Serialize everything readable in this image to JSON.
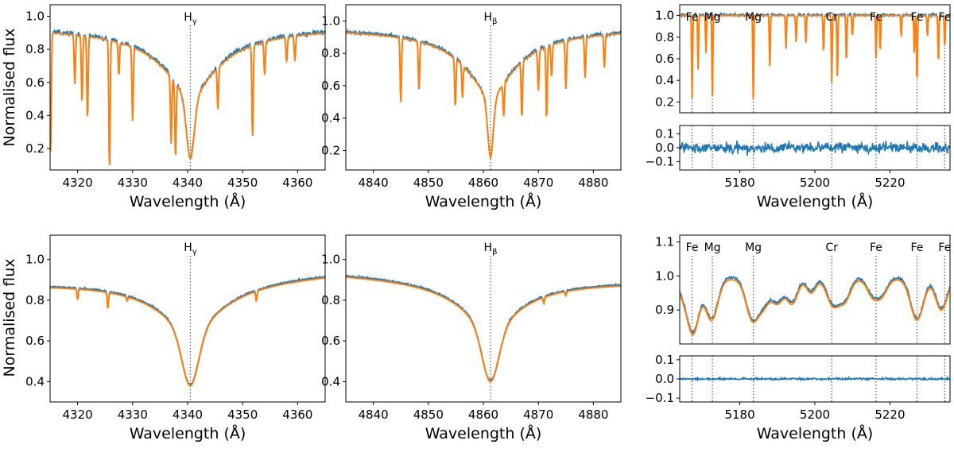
{
  "figure": {
    "ylabel": "Normalised flux",
    "xlabel": "Wavelength (Å)",
    "colors": {
      "observed": "#1f77b4",
      "model": "#ff7f0e",
      "marker": "#555555"
    }
  },
  "chart_data": [
    {
      "id": "top-hgamma",
      "type": "line",
      "title": "",
      "xlabel": "Wavelength (Å)",
      "ylabel": "Normalised flux",
      "xlim": [
        4315,
        4365
      ],
      "ylim": [
        0.07,
        1.07
      ],
      "xticks": [
        4320,
        4330,
        4340,
        4350,
        4360
      ],
      "yticks": [
        0.2,
        0.4,
        0.6,
        0.8,
        1.0
      ],
      "ytick_labels": [
        "0.2",
        "0.4",
        "0.6",
        "0.8",
        "1.0"
      ],
      "line_markers": [
        {
          "x": 4340.5,
          "label": "H",
          "sub": "γ"
        }
      ],
      "profile": {
        "kind": "balmer",
        "center": 4340.5,
        "continuum": 0.94,
        "cont_slope": 0.0,
        "depth": 0.8,
        "core_width": 0.7,
        "wing_width": 6.0,
        "noise": 0.015
      },
      "absorption_lines": [
        {
          "x": 4315.1,
          "depth": 0.72
        },
        {
          "x": 4319.5,
          "depth": 0.3
        },
        {
          "x": 4320.8,
          "depth": 0.4
        },
        {
          "x": 4321.8,
          "depth": 0.5
        },
        {
          "x": 4325.8,
          "depth": 0.78
        },
        {
          "x": 4327.5,
          "depth": 0.2
        },
        {
          "x": 4330.0,
          "depth": 0.45
        },
        {
          "x": 4337.0,
          "depth": 0.4
        },
        {
          "x": 4337.8,
          "depth": 0.45
        },
        {
          "x": 4345.5,
          "depth": 0.25
        },
        {
          "x": 4351.8,
          "depth": 0.55
        },
        {
          "x": 4354.0,
          "depth": 0.2
        },
        {
          "x": 4358.0,
          "depth": 0.15
        },
        {
          "x": 4359.5,
          "depth": 0.15
        }
      ]
    },
    {
      "id": "top-hbeta",
      "type": "line",
      "title": "",
      "xlabel": "Wavelength (Å)",
      "xlim": [
        4835,
        4885
      ],
      "ylim": [
        0.08,
        1.1
      ],
      "xticks": [
        4840,
        4850,
        4860,
        4870,
        4880
      ],
      "yticks": [
        0.2,
        0.4,
        0.6,
        0.8,
        1.0
      ],
      "ytick_labels": [
        "0.2",
        "0.4",
        "0.6",
        "0.8",
        "1.0"
      ],
      "line_markers": [
        {
          "x": 4861.3,
          "label": "H",
          "sub": "β"
        }
      ],
      "profile": {
        "kind": "balmer",
        "center": 4861.3,
        "continuum": 0.96,
        "cont_slope": 0.0,
        "depth": 0.8,
        "core_width": 0.5,
        "wing_width": 5.5,
        "noise": 0.012
      },
      "absorption_lines": [
        {
          "x": 4845.0,
          "depth": 0.4
        },
        {
          "x": 4848.3,
          "depth": 0.3
        },
        {
          "x": 4854.9,
          "depth": 0.3
        },
        {
          "x": 4856.2,
          "depth": 0.2
        },
        {
          "x": 4863.7,
          "depth": 0.2
        },
        {
          "x": 4867.0,
          "depth": 0.35
        },
        {
          "x": 4870.0,
          "depth": 0.25
        },
        {
          "x": 4871.5,
          "depth": 0.45
        },
        {
          "x": 4872.4,
          "depth": 0.2
        },
        {
          "x": 4875.0,
          "depth": 0.3
        },
        {
          "x": 4878.5,
          "depth": 0.25
        },
        {
          "x": 4882.0,
          "depth": 0.2
        }
      ]
    },
    {
      "id": "top-mgb",
      "type": "line",
      "title": "",
      "xlim": [
        5164,
        5236
      ],
      "ylim": [
        0.1,
        1.1
      ],
      "xticks": [],
      "yticks": [
        0.2,
        0.4,
        0.6,
        0.8,
        1.0
      ],
      "ytick_labels": [
        "0.2",
        "0.4",
        "0.6",
        "0.8",
        "1.0"
      ],
      "line_markers": [
        {
          "x": 5167.3,
          "label": "Fe"
        },
        {
          "x": 5172.7,
          "label": "Mg"
        },
        {
          "x": 5183.6,
          "label": "Mg"
        },
        {
          "x": 5204.5,
          "label": "Cr"
        },
        {
          "x": 5216.3,
          "label": "Fe"
        },
        {
          "x": 5227.2,
          "label": "Fe"
        },
        {
          "x": 5234.6,
          "label": "Fe"
        }
      ],
      "profile": {
        "kind": "flat",
        "continuum": 1.0,
        "noise": 0.012
      },
      "absorption_lines": [
        {
          "x": 5167.3,
          "depth": 0.77
        },
        {
          "x": 5168.9,
          "depth": 0.5
        },
        {
          "x": 5171.0,
          "depth": 0.35
        },
        {
          "x": 5172.7,
          "depth": 0.78
        },
        {
          "x": 5183.6,
          "depth": 0.78
        },
        {
          "x": 5188.0,
          "depth": 0.5
        },
        {
          "x": 5192.3,
          "depth": 0.3
        },
        {
          "x": 5195.0,
          "depth": 0.25
        },
        {
          "x": 5197.6,
          "depth": 0.25
        },
        {
          "x": 5202.3,
          "depth": 0.35
        },
        {
          "x": 5204.5,
          "depth": 0.62
        },
        {
          "x": 5206.0,
          "depth": 0.6
        },
        {
          "x": 5208.4,
          "depth": 0.45
        },
        {
          "x": 5210.0,
          "depth": 0.2
        },
        {
          "x": 5216.3,
          "depth": 0.4
        },
        {
          "x": 5217.4,
          "depth": 0.35
        },
        {
          "x": 5223.0,
          "depth": 0.2
        },
        {
          "x": 5226.5,
          "depth": 0.35
        },
        {
          "x": 5227.2,
          "depth": 0.65
        },
        {
          "x": 5230.0,
          "depth": 0.2
        },
        {
          "x": 5232.9,
          "depth": 0.45
        },
        {
          "x": 5234.6,
          "depth": 0.3
        }
      ]
    },
    {
      "id": "top-mgb-residual",
      "type": "line",
      "title": "",
      "xlabel": "Wavelength (Å)",
      "xlim": [
        5164,
        5236
      ],
      "ylim": [
        -0.16,
        0.16
      ],
      "xticks": [
        5180,
        5200,
        5220
      ],
      "yticks": [
        -0.1,
        0.0,
        0.1
      ],
      "ytick_labels": [
        "−0.1",
        "0.0",
        "0.1"
      ],
      "marker_x": [
        5167.3,
        5172.7,
        5183.6,
        5204.5,
        5216.3,
        5227.2,
        5234.6
      ],
      "profile": {
        "kind": "residual",
        "noise": 0.035
      }
    },
    {
      "id": "bottom-hgamma",
      "type": "line",
      "title": "",
      "xlabel": "Wavelength (Å)",
      "ylabel": "Normalised flux",
      "xlim": [
        4315,
        4365
      ],
      "ylim": [
        0.3,
        1.12
      ],
      "xticks": [
        4320,
        4330,
        4340,
        4350,
        4360
      ],
      "yticks": [
        0.4,
        0.6,
        0.8,
        1.0
      ],
      "ytick_labels": [
        "0.4",
        "0.6",
        "0.8",
        "1.0"
      ],
      "line_markers": [
        {
          "x": 4340.5,
          "label": "H",
          "sub": "γ"
        }
      ],
      "profile": {
        "kind": "balmer",
        "center": 4340.5,
        "continuum": 0.92,
        "cont_slope": 0.001,
        "depth": 0.54,
        "core_width": 1.5,
        "wing_width": 7.0,
        "noise": 0.004
      },
      "absorption_lines": [
        {
          "x": 4320.0,
          "depth": 0.05
        },
        {
          "x": 4325.5,
          "depth": 0.08
        },
        {
          "x": 4329.0,
          "depth": 0.02
        },
        {
          "x": 4352.5,
          "depth": 0.05
        }
      ]
    },
    {
      "id": "bottom-hbeta",
      "type": "line",
      "title": "",
      "xlabel": "Wavelength (Å)",
      "xlim": [
        4835,
        4885
      ],
      "ylim": [
        0.3,
        1.12
      ],
      "xticks": [
        4840,
        4850,
        4860,
        4870,
        4880
      ],
      "yticks": [
        0.4,
        0.6,
        0.8,
        1.0
      ],
      "ytick_labels": [
        "0.4",
        "0.6",
        "0.8",
        "1.0"
      ],
      "line_markers": [
        {
          "x": 4861.3,
          "label": "H",
          "sub": "β"
        }
      ],
      "profile": {
        "kind": "balmer",
        "center": 4861.3,
        "continuum": 0.92,
        "cont_slope": -0.0008,
        "depth": 0.52,
        "core_width": 1.5,
        "wing_width": 6.5,
        "noise": 0.004
      },
      "absorption_lines": [
        {
          "x": 4871.0,
          "depth": 0.03
        },
        {
          "x": 4875.0,
          "depth": 0.02
        }
      ]
    },
    {
      "id": "bottom-mgb",
      "type": "line",
      "title": "",
      "xlim": [
        5164,
        5236
      ],
      "ylim": [
        0.8,
        1.12
      ],
      "xticks": [],
      "yticks": [
        0.9,
        1.0,
        1.1
      ],
      "ytick_labels": [
        "0.9",
        "1.0",
        "1.1"
      ],
      "line_markers": [
        {
          "x": 5167.3,
          "label": "Fe"
        },
        {
          "x": 5172.7,
          "label": "Mg"
        },
        {
          "x": 5183.6,
          "label": "Mg"
        },
        {
          "x": 5204.5,
          "label": "Cr"
        },
        {
          "x": 5216.3,
          "label": "Fe"
        },
        {
          "x": 5227.2,
          "label": "Fe"
        },
        {
          "x": 5234.6,
          "label": "Fe"
        }
      ],
      "profile": {
        "kind": "flat",
        "continuum": 0.99,
        "noise": 0.004
      },
      "absorption_lines": [
        {
          "x": 5164.5,
          "depth": 0.03,
          "width": 1.2
        },
        {
          "x": 5167.5,
          "depth": 0.16,
          "width": 1.6
        },
        {
          "x": 5172.5,
          "depth": 0.12,
          "width": 1.6
        },
        {
          "x": 5183.4,
          "depth": 0.12,
          "width": 1.7
        },
        {
          "x": 5186.5,
          "depth": 0.06,
          "width": 1.4
        },
        {
          "x": 5190.0,
          "depth": 0.07,
          "width": 1.6
        },
        {
          "x": 5194.0,
          "depth": 0.07,
          "width": 1.4
        },
        {
          "x": 5199.0,
          "depth": 0.04,
          "width": 1.2
        },
        {
          "x": 5204.8,
          "depth": 0.075,
          "width": 1.6
        },
        {
          "x": 5208.0,
          "depth": 0.06,
          "width": 1.5
        },
        {
          "x": 5215.5,
          "depth": 0.05,
          "width": 1.5
        },
        {
          "x": 5218.0,
          "depth": 0.04,
          "width": 1.4
        },
        {
          "x": 5227.2,
          "depth": 0.12,
          "width": 1.7
        },
        {
          "x": 5233.7,
          "depth": 0.09,
          "width": 1.5
        }
      ]
    },
    {
      "id": "bottom-mgb-residual",
      "type": "line",
      "title": "",
      "xlabel": "Wavelength (Å)",
      "xlim": [
        5164,
        5236
      ],
      "ylim": [
        -0.12,
        0.12
      ],
      "xticks": [
        5180,
        5200,
        5220
      ],
      "yticks": [
        -0.1,
        0.0,
        0.1
      ],
      "ytick_labels": [
        "−0.1",
        "0.0",
        "0.1"
      ],
      "marker_x": [
        5167.3,
        5172.7,
        5183.6,
        5204.5,
        5216.3,
        5227.2,
        5234.6
      ],
      "profile": {
        "kind": "residual",
        "noise": 0.005
      }
    }
  ]
}
